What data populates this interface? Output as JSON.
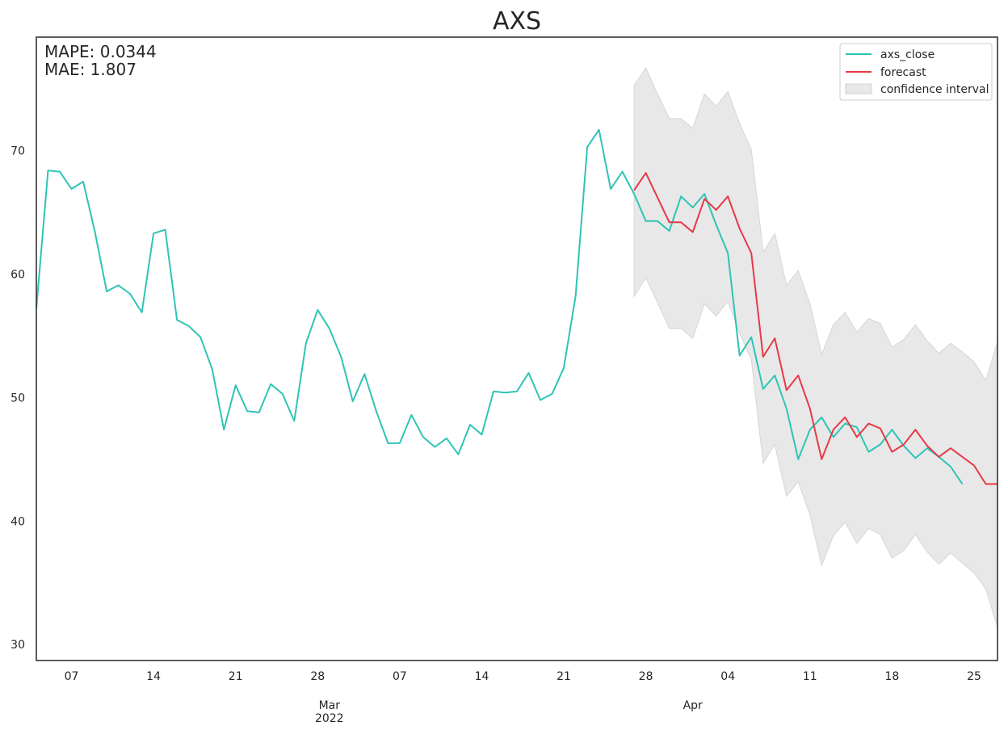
{
  "chart_data": {
    "type": "line",
    "title": "AXS",
    "annotations": [
      "MAPE: 0.0344",
      "MAE: 1.807"
    ],
    "xlim": [
      "2022-02-04",
      "2022-04-27"
    ],
    "ylim": [
      28.7,
      79.2
    ],
    "grid": false,
    "legend_position": "top-right",
    "y_ticks": [
      30,
      40,
      50,
      60,
      70
    ],
    "x_ticks": [
      {
        "date": "2022-02-07",
        "label": "07"
      },
      {
        "date": "2022-02-14",
        "label": "14"
      },
      {
        "date": "2022-02-21",
        "label": "21"
      },
      {
        "date": "2022-02-28",
        "label": "28"
      },
      {
        "date": "2022-03-07",
        "label": "07"
      },
      {
        "date": "2022-03-14",
        "label": "14"
      },
      {
        "date": "2022-03-21",
        "label": "21"
      },
      {
        "date": "2022-03-28",
        "label": "28"
      },
      {
        "date": "2022-04-04",
        "label": "04"
      },
      {
        "date": "2022-04-11",
        "label": "11"
      },
      {
        "date": "2022-04-18",
        "label": "18"
      },
      {
        "date": "2022-04-25",
        "label": "25"
      }
    ],
    "x_major_labels": [
      {
        "date": "2022-03-01",
        "lines": [
          "Mar",
          "2022"
        ]
      },
      {
        "date": "2022-04-01",
        "lines": [
          "Apr"
        ]
      }
    ],
    "series": [
      {
        "name": "axs_close",
        "color": "#2ec4b6",
        "x_start": "2022-02-04",
        "values": [
          57.2,
          68.4,
          68.3,
          66.9,
          67.5,
          63.4,
          58.6,
          59.1,
          58.4,
          56.9,
          63.3,
          63.6,
          56.3,
          55.8,
          54.9,
          52.3,
          47.4,
          51.0,
          48.9,
          48.8,
          51.1,
          50.3,
          48.1,
          54.4,
          57.1,
          55.6,
          53.3,
          49.7,
          51.9,
          48.9,
          46.3,
          46.3,
          48.6,
          46.8,
          46.0,
          46.7,
          45.4,
          47.8,
          47.0,
          50.5,
          50.4,
          50.5,
          52.0,
          49.8,
          50.3,
          52.4,
          58.2,
          70.3,
          71.7,
          66.9,
          68.3,
          66.5,
          64.3,
          64.3,
          63.5,
          66.3,
          65.4,
          66.5,
          64.0,
          61.7,
          53.4,
          54.9,
          50.7,
          51.8,
          49.1,
          45.0,
          47.4,
          48.4,
          46.8,
          47.9,
          47.6,
          45.6,
          46.2,
          47.4,
          46.1,
          45.1,
          45.9,
          45.2,
          44.4,
          43.0
        ]
      },
      {
        "name": "forecast",
        "color": "#e63946",
        "x_start": "2022-03-27",
        "values": [
          66.8,
          68.2,
          66.2,
          64.2,
          64.2,
          63.4,
          66.1,
          65.2,
          66.3,
          63.7,
          61.7,
          53.3,
          54.8,
          50.6,
          51.8,
          49.1,
          45.0,
          47.4,
          48.4,
          46.8,
          47.9,
          47.5,
          45.6,
          46.2,
          47.4,
          46.1,
          45.2,
          45.9,
          45.2,
          44.5,
          43.0,
          43.0
        ]
      }
    ],
    "confidence_interval": {
      "name": "confidence interval",
      "color": "#e8e8e8",
      "x_start": "2022-03-27",
      "upper": [
        75.3,
        76.7,
        74.6,
        72.6,
        72.6,
        71.8,
        74.6,
        73.6,
        74.8,
        72.2,
        70.1,
        61.8,
        63.3,
        59.1,
        60.3,
        57.6,
        53.5,
        55.9,
        56.9,
        55.3,
        56.4,
        56.0,
        54.1,
        54.7,
        55.9,
        54.6,
        53.6,
        54.4,
        53.7,
        52.9,
        51.4,
        54.5
      ],
      "lower": [
        58.2,
        59.7,
        57.7,
        55.6,
        55.6,
        54.8,
        57.6,
        56.6,
        57.8,
        55.2,
        53.1,
        44.7,
        46.2,
        42.0,
        43.2,
        40.5,
        36.4,
        38.8,
        39.9,
        38.2,
        39.4,
        38.9,
        37.0,
        37.6,
        38.9,
        37.5,
        36.5,
        37.4,
        36.6,
        35.8,
        34.5,
        31.4
      ]
    }
  }
}
